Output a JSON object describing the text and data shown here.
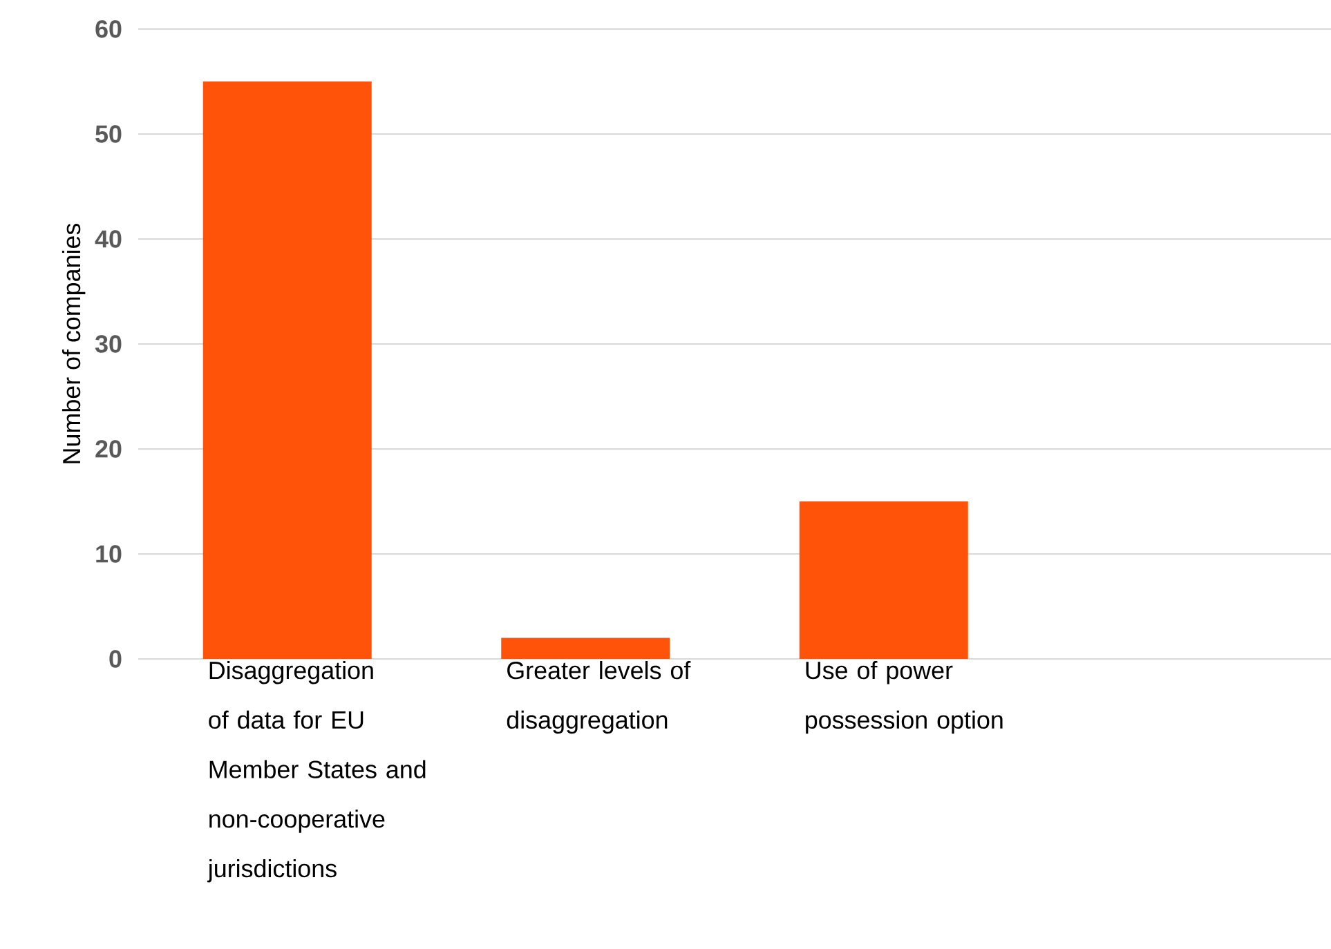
{
  "chart_data": {
    "type": "bar",
    "ylabel": "Number of companies",
    "categories": [
      "Disaggregation of data for EU Member States and non-cooperative jurisdictions",
      "Greater levels of disaggregation",
      "Use of power possession option",
      null
    ],
    "values": [
      55,
      2,
      15,
      null
    ],
    "color": "#ff5309",
    "ylim": [
      0,
      60
    ],
    "yticks": [
      0,
      10,
      20,
      30,
      40,
      50,
      60
    ],
    "grid": "y"
  }
}
